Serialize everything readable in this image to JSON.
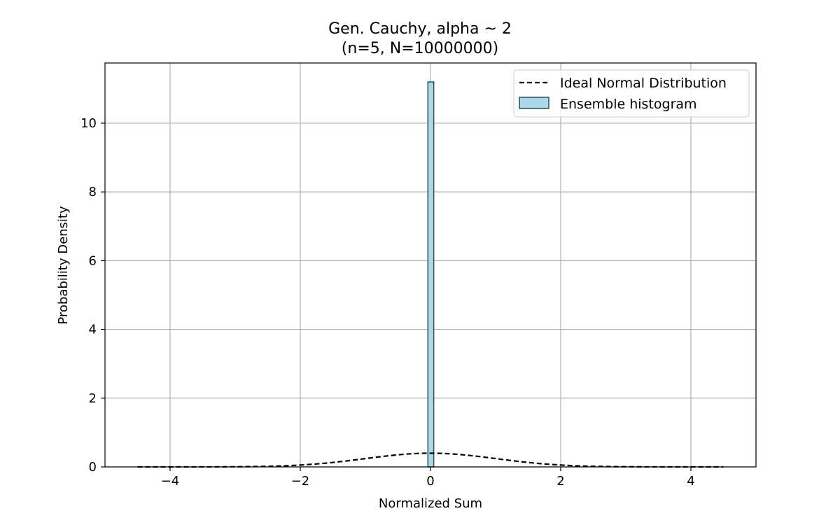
{
  "chart_data": {
    "type": "bar",
    "title": "Gen. Cauchy, alpha ~ 2",
    "subtitle": "(n=5, N=10000000)",
    "xlabel": "Normalized Sum",
    "ylabel": "Probability Density",
    "xlim": [
      -5,
      5
    ],
    "ylim": [
      0,
      11.75
    ],
    "x_ticks": [
      -4,
      -2,
      0,
      2,
      4
    ],
    "x_tick_labels": [
      "−4",
      "−2",
      "0",
      "2",
      "4"
    ],
    "y_ticks": [
      0,
      2,
      4,
      6,
      8,
      10
    ],
    "y_tick_labels": [
      "0",
      "2",
      "4",
      "6",
      "8",
      "10"
    ],
    "grid": true,
    "legend_position": "top-right",
    "histogram": {
      "name": "Ensemble histogram",
      "bin_edges": [
        -0.04,
        0.05
      ],
      "values": [
        11.2
      ],
      "fill": "#add8e6",
      "edge": "#2f4f5f"
    },
    "normal_curve": {
      "name": "Ideal Normal Distribution",
      "x_range": [
        -4.5,
        4.5
      ],
      "mean": 0,
      "std": 1,
      "color": "#000000",
      "style": "dashed"
    }
  }
}
